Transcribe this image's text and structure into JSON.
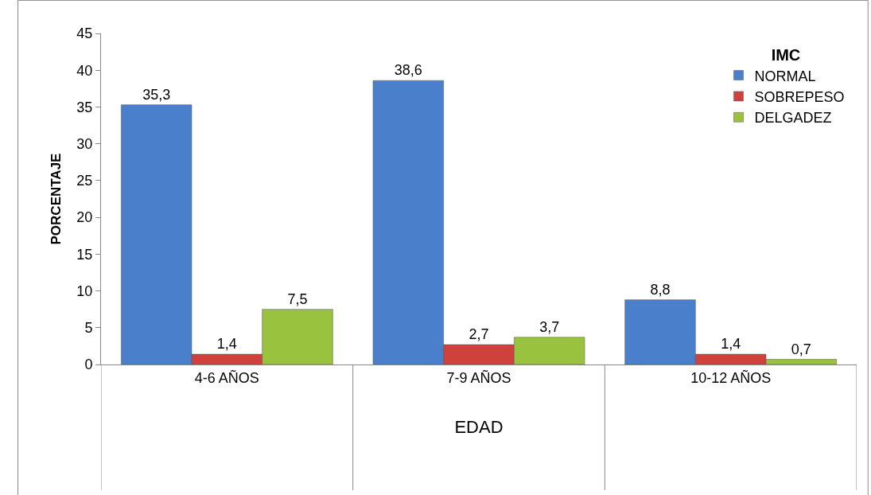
{
  "chart_data": {
    "type": "bar",
    "xlabel": "EDAD",
    "ylabel": "PORCENTAJE",
    "legend_title": "IMC",
    "categories": [
      "4-6 AÑOS",
      "7-9 AÑOS",
      "10-12 AÑOS"
    ],
    "series": [
      {
        "name": "NORMAL",
        "color": "#4a7fcc",
        "values": [
          35.3,
          38.6,
          8.8
        ],
        "value_labels": [
          "35,3",
          "38,6",
          "8,8"
        ]
      },
      {
        "name": "SOBREPESO",
        "color": "#d0413e",
        "values": [
          1.4,
          2.7,
          1.4
        ],
        "value_labels": [
          "1,4",
          "2,7",
          "1,4"
        ]
      },
      {
        "name": "DELGADEZ",
        "color": "#99c23f",
        "values": [
          7.5,
          3.7,
          0.7
        ],
        "value_labels": [
          "7,5",
          "3,7",
          "0,7"
        ]
      }
    ],
    "ylim": [
      0,
      45
    ],
    "yticks": [
      0,
      5,
      10,
      15,
      20,
      25,
      30,
      35,
      40,
      45
    ],
    "grid": false,
    "legend": "top right"
  }
}
